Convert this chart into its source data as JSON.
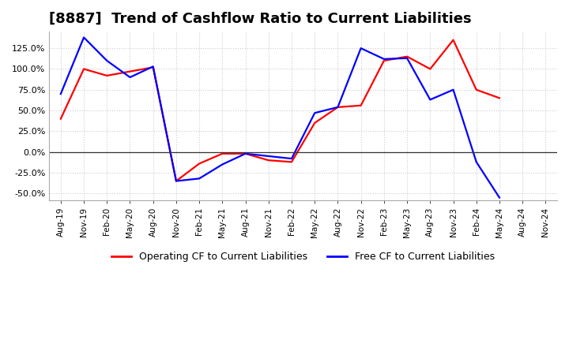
{
  "title": "[8887]  Trend of Cashflow Ratio to Current Liabilities",
  "title_fontsize": 13,
  "legend_labels": [
    "Operating CF to Current Liabilities",
    "Free CF to Current Liabilities"
  ],
  "legend_colors": [
    "#ff0000",
    "#0000ff"
  ],
  "ylim": [
    -0.58,
    1.45
  ],
  "yticks": [
    -0.5,
    -0.25,
    0.0,
    0.25,
    0.5,
    0.75,
    1.0,
    1.25
  ],
  "x_labels": [
    "Aug-19",
    "Nov-19",
    "Feb-20",
    "May-20",
    "Aug-20",
    "Nov-20",
    "Feb-21",
    "May-21",
    "Aug-21",
    "Nov-21",
    "Feb-22",
    "May-22",
    "Aug-22",
    "Nov-22",
    "Feb-23",
    "May-23",
    "Aug-23",
    "Nov-23",
    "Feb-24",
    "May-24",
    "Aug-24",
    "Nov-24"
  ],
  "operating_cf": [
    0.4,
    1.0,
    0.92,
    0.97,
    1.02,
    -0.35,
    -0.14,
    -0.02,
    -0.02,
    -0.1,
    -0.12,
    0.35,
    0.54,
    0.56,
    1.1,
    1.15,
    1.0,
    1.35,
    0.75,
    0.65,
    null,
    null
  ],
  "free_cf": [
    0.7,
    1.38,
    1.1,
    0.9,
    1.03,
    -0.35,
    -0.32,
    -0.15,
    -0.02,
    -0.05,
    -0.08,
    0.47,
    0.54,
    1.25,
    1.12,
    1.13,
    0.63,
    0.75,
    -0.12,
    -0.55,
    null,
    null
  ],
  "grid_color": "#cccccc",
  "grid_style": "dotted",
  "background_color": "#ffffff"
}
